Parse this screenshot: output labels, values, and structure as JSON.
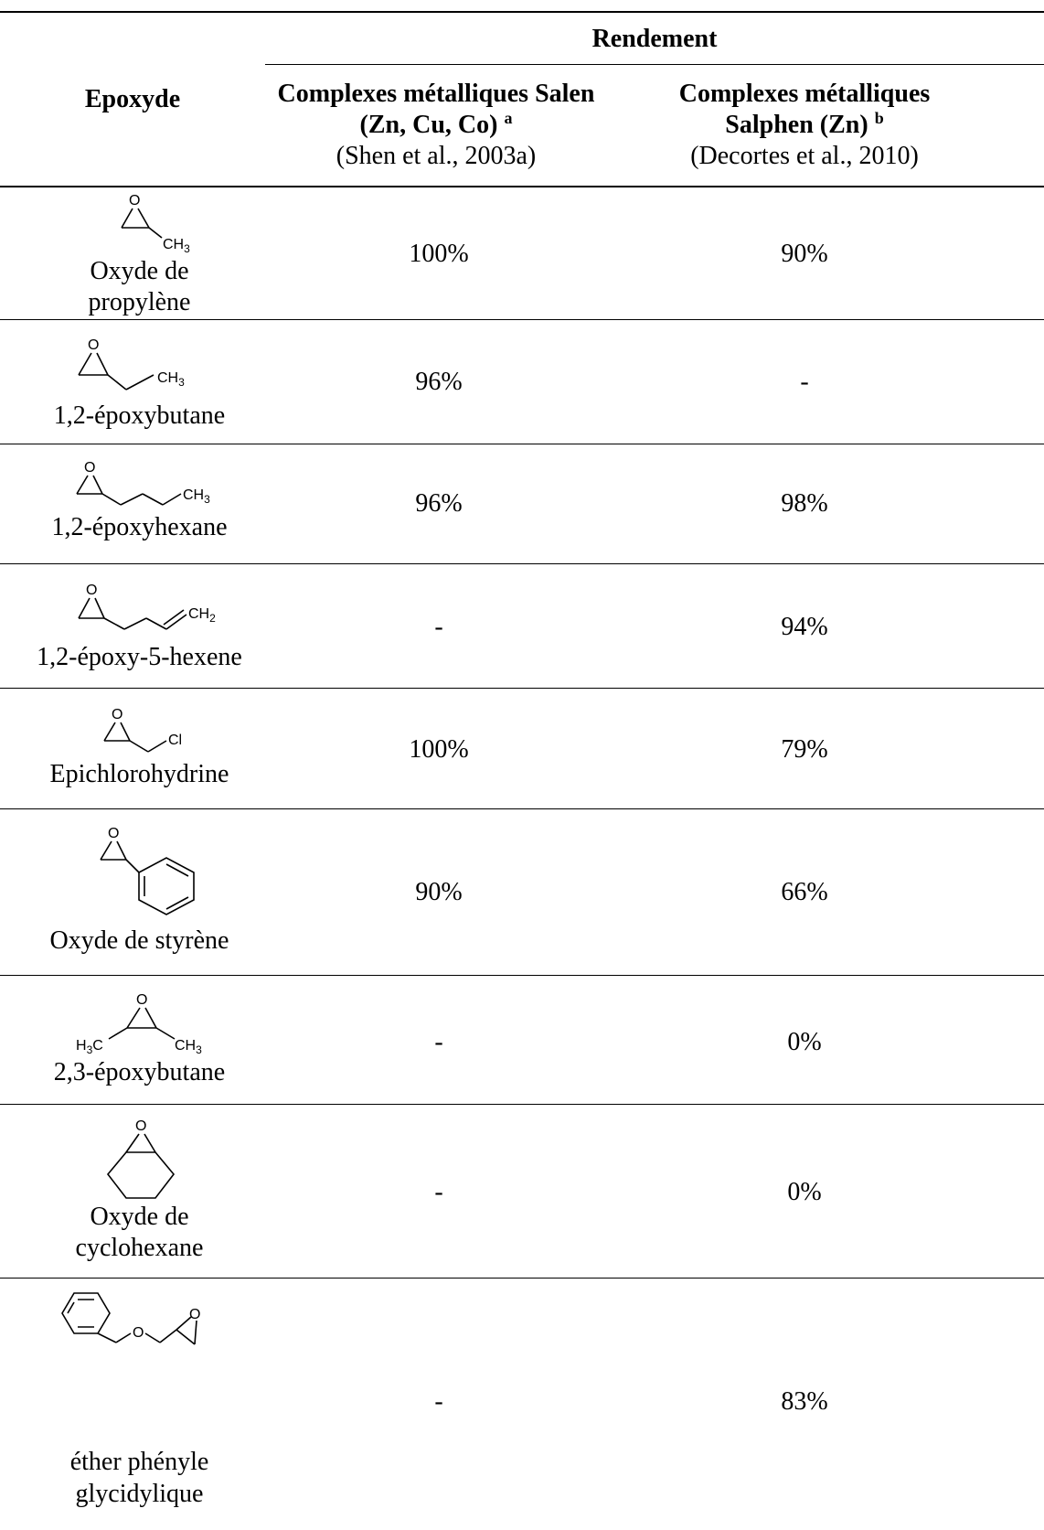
{
  "header": {
    "epoxyde": "Epoxyde",
    "rendement": "Rendement",
    "col1_line1": "Complexes métalliques Salen",
    "col1_line2": "(Zn, Cu, Co)",
    "col1_sup": "a",
    "col1_ref": "(Shen et al., 2003a)",
    "col2_line1": "Complexes métalliques",
    "col2_line2": "Salphen (Zn)",
    "col2_sup": "b",
    "col2_ref": "(Decortes et al., 2010)"
  },
  "atoms": {
    "o": "O",
    "ch3": "CH",
    "ch2": "CH",
    "sub3": "3",
    "sub2": "2",
    "cl": "Cl",
    "h3c": "H",
    "c": "C"
  },
  "rows": [
    {
      "name_lines": [
        "Oxyde de",
        "propylène"
      ],
      "salen": "100%",
      "salphen": "90%"
    },
    {
      "name_lines": [
        "1,2-époxybutane"
      ],
      "salen": "96%",
      "salphen": "-"
    },
    {
      "name_lines": [
        "1,2-époxyhexane"
      ],
      "salen": "96%",
      "salphen": "98%"
    },
    {
      "name_lines": [
        "1,2-époxy-5-hexene"
      ],
      "salen": "-",
      "salphen": "94%"
    },
    {
      "name_lines": [
        "Epichlorohydrine"
      ],
      "salen": "100%",
      "salphen": "79%"
    },
    {
      "name_lines": [
        "Oxyde de styrène"
      ],
      "salen": "90%",
      "salphen": "66%"
    },
    {
      "name_lines": [
        "2,3-époxybutane"
      ],
      "salen": "-",
      "salphen": "0%"
    },
    {
      "name_lines": [
        "Oxyde de",
        "cyclohexane"
      ],
      "salen": "-",
      "salphen": "0%"
    },
    {
      "name_lines": [
        "éther phényle",
        "glycidylique"
      ],
      "salen": "-",
      "salphen": "83%"
    }
  ]
}
